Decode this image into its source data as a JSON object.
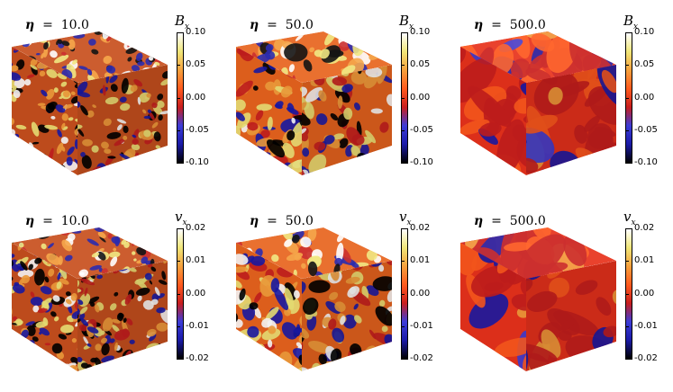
{
  "panels": [
    {
      "eta_value": "10.0",
      "variable": "Bx",
      "var_label": "B",
      "var_sub": "x",
      "ticks": [
        "0.10",
        "0.05",
        "0.00",
        "-0.05",
        "-0.10"
      ],
      "tone": "fine"
    },
    {
      "eta_value": "50.0",
      "variable": "Bx",
      "var_label": "B",
      "var_sub": "x",
      "ticks": [
        "0.10",
        "0.05",
        "0.00",
        "-0.05",
        "-0.10"
      ],
      "tone": "mid"
    },
    {
      "eta_value": "500.0",
      "variable": "Bx",
      "var_label": "B",
      "var_sub": "x",
      "ticks": [
        "0.10",
        "0.05",
        "0.00",
        "-0.05",
        "-0.10"
      ],
      "tone": "smooth"
    },
    {
      "eta_value": "10.0",
      "variable": "vx",
      "var_label": "v",
      "var_sub": "x",
      "ticks": [
        "0.02",
        "0.01",
        "0.00",
        "-0.01",
        "-0.02"
      ],
      "tone": "fine"
    },
    {
      "eta_value": "50.0",
      "variable": "vx",
      "var_label": "v",
      "var_sub": "x",
      "ticks": [
        "0.02",
        "0.01",
        "0.00",
        "-0.01",
        "-0.02"
      ],
      "tone": "mid"
    },
    {
      "eta_value": "500.0",
      "variable": "vx",
      "var_label": "v",
      "var_sub": "x",
      "ticks": [
        "0.02",
        "0.01",
        "0.00",
        "-0.01",
        "-0.02"
      ],
      "tone": "smooth"
    }
  ],
  "eta_symbol": "η",
  "colormap": [
    "#000000",
    "#1a1aa8",
    "#3c3cd8",
    "#c81e1e",
    "#ff5a1e",
    "#f5a03c",
    "#f0e678",
    "#ffffff"
  ]
}
